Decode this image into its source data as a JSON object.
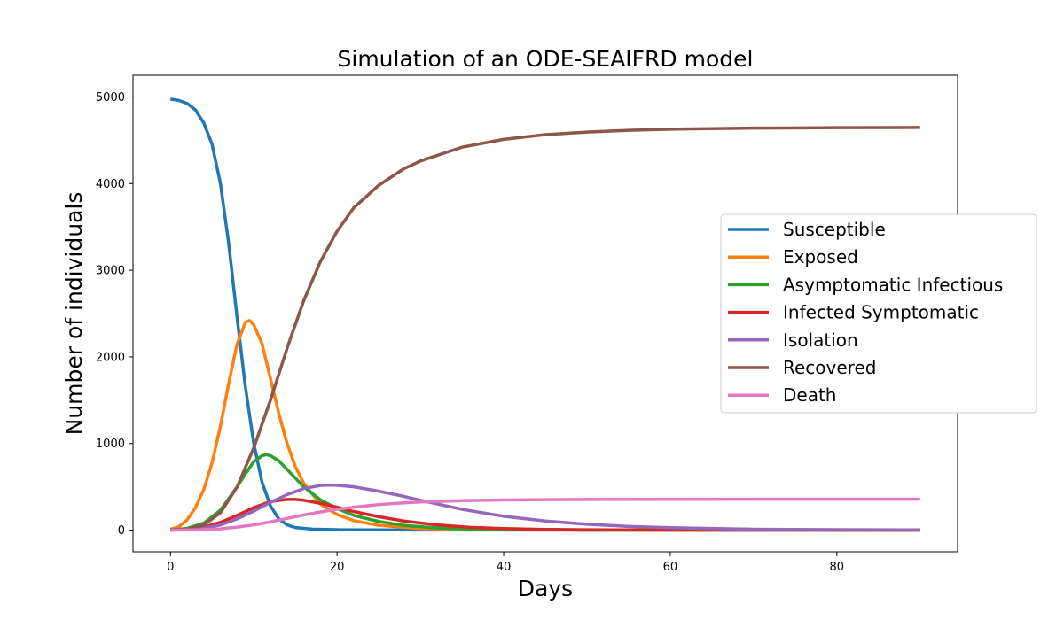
{
  "chart_data": {
    "type": "line",
    "title": "Simulation of an ODE-SEAIFRD model",
    "xlabel": "Days",
    "ylabel": "Number of individuals",
    "xlim": [
      -4.5,
      94.5
    ],
    "ylim": [
      -250,
      5250
    ],
    "xticks": [
      0,
      20,
      40,
      60,
      80
    ],
    "yticks": [
      0,
      1000,
      2000,
      3000,
      4000,
      5000
    ],
    "grid": false,
    "legend_position": "center-right",
    "series": [
      {
        "name": "Susceptible",
        "color": "#1f77b4",
        "points": [
          [
            0,
            4975
          ],
          [
            1,
            4960
          ],
          [
            2,
            4925
          ],
          [
            3,
            4850
          ],
          [
            4,
            4700
          ],
          [
            5,
            4450
          ],
          [
            6,
            4000
          ],
          [
            7,
            3300
          ],
          [
            8,
            2450
          ],
          [
            9,
            1650
          ],
          [
            10,
            1000
          ],
          [
            11,
            550
          ],
          [
            12,
            280
          ],
          [
            13,
            130
          ],
          [
            14,
            60
          ],
          [
            15,
            30
          ],
          [
            17,
            12
          ],
          [
            20,
            5
          ],
          [
            30,
            2
          ],
          [
            50,
            1
          ],
          [
            90,
            1
          ]
        ]
      },
      {
        "name": "Exposed",
        "color": "#ff7f0e",
        "points": [
          [
            0,
            10
          ],
          [
            1,
            40
          ],
          [
            2,
            120
          ],
          [
            3,
            260
          ],
          [
            4,
            470
          ],
          [
            5,
            780
          ],
          [
            6,
            1200
          ],
          [
            7,
            1700
          ],
          [
            8,
            2150
          ],
          [
            9,
            2400
          ],
          [
            9.5,
            2420
          ],
          [
            10,
            2370
          ],
          [
            11,
            2150
          ],
          [
            12,
            1750
          ],
          [
            13,
            1350
          ],
          [
            14,
            1000
          ],
          [
            15,
            730
          ],
          [
            16,
            540
          ],
          [
            18,
            300
          ],
          [
            20,
            180
          ],
          [
            22,
            110
          ],
          [
            25,
            55
          ],
          [
            30,
            20
          ],
          [
            35,
            8
          ],
          [
            40,
            3
          ],
          [
            50,
            1
          ],
          [
            90,
            0
          ]
        ]
      },
      {
        "name": "Asymptomatic Infectious",
        "color": "#2ca02c",
        "points": [
          [
            0,
            5
          ],
          [
            2,
            20
          ],
          [
            4,
            80
          ],
          [
            6,
            230
          ],
          [
            8,
            500
          ],
          [
            9,
            650
          ],
          [
            10,
            790
          ],
          [
            11,
            860
          ],
          [
            11.5,
            870
          ],
          [
            12,
            860
          ],
          [
            13,
            800
          ],
          [
            14,
            700
          ],
          [
            15,
            600
          ],
          [
            16,
            500
          ],
          [
            18,
            350
          ],
          [
            20,
            250
          ],
          [
            22,
            170
          ],
          [
            25,
            100
          ],
          [
            28,
            55
          ],
          [
            32,
            25
          ],
          [
            36,
            12
          ],
          [
            40,
            6
          ],
          [
            50,
            2
          ],
          [
            90,
            0
          ]
        ]
      },
      {
        "name": "Infected Symptomatic",
        "color": "#d62728",
        "points": [
          [
            0,
            3
          ],
          [
            2,
            10
          ],
          [
            4,
            35
          ],
          [
            6,
            90
          ],
          [
            8,
            170
          ],
          [
            10,
            260
          ],
          [
            12,
            330
          ],
          [
            14,
            355
          ],
          [
            15,
            355
          ],
          [
            16,
            345
          ],
          [
            18,
            310
          ],
          [
            20,
            265
          ],
          [
            22,
            215
          ],
          [
            25,
            155
          ],
          [
            28,
            105
          ],
          [
            32,
            60
          ],
          [
            36,
            33
          ],
          [
            40,
            18
          ],
          [
            45,
            8
          ],
          [
            50,
            4
          ],
          [
            60,
            1
          ],
          [
            90,
            0
          ]
        ]
      },
      {
        "name": "Isolation",
        "color": "#9467bd",
        "points": [
          [
            0,
            0
          ],
          [
            2,
            5
          ],
          [
            4,
            20
          ],
          [
            6,
            60
          ],
          [
            8,
            130
          ],
          [
            10,
            220
          ],
          [
            12,
            320
          ],
          [
            14,
            410
          ],
          [
            16,
            480
          ],
          [
            18,
            515
          ],
          [
            19,
            520
          ],
          [
            20,
            518
          ],
          [
            22,
            500
          ],
          [
            25,
            450
          ],
          [
            28,
            390
          ],
          [
            30,
            345
          ],
          [
            35,
            240
          ],
          [
            40,
            160
          ],
          [
            45,
            105
          ],
          [
            50,
            68
          ],
          [
            55,
            43
          ],
          [
            60,
            28
          ],
          [
            70,
            11
          ],
          [
            80,
            5
          ],
          [
            90,
            2
          ]
        ]
      },
      {
        "name": "Recovered",
        "color": "#8c564b",
        "points": [
          [
            0,
            0
          ],
          [
            2,
            10
          ],
          [
            4,
            60
          ],
          [
            6,
            200
          ],
          [
            8,
            500
          ],
          [
            10,
            950
          ],
          [
            12,
            1500
          ],
          [
            14,
            2100
          ],
          [
            16,
            2650
          ],
          [
            18,
            3100
          ],
          [
            20,
            3450
          ],
          [
            22,
            3720
          ],
          [
            25,
            3980
          ],
          [
            28,
            4170
          ],
          [
            30,
            4260
          ],
          [
            35,
            4420
          ],
          [
            40,
            4510
          ],
          [
            45,
            4565
          ],
          [
            50,
            4595
          ],
          [
            55,
            4615
          ],
          [
            60,
            4628
          ],
          [
            70,
            4640
          ],
          [
            80,
            4645
          ],
          [
            90,
            4648
          ]
        ]
      },
      {
        "name": "Death",
        "color": "#e377c2",
        "points": [
          [
            0,
            0
          ],
          [
            4,
            5
          ],
          [
            6,
            15
          ],
          [
            8,
            35
          ],
          [
            10,
            60
          ],
          [
            12,
            95
          ],
          [
            14,
            135
          ],
          [
            16,
            175
          ],
          [
            18,
            210
          ],
          [
            20,
            240
          ],
          [
            22,
            265
          ],
          [
            25,
            295
          ],
          [
            28,
            315
          ],
          [
            30,
            325
          ],
          [
            35,
            340
          ],
          [
            40,
            348
          ],
          [
            45,
            352
          ],
          [
            50,
            354
          ],
          [
            60,
            356
          ],
          [
            70,
            357
          ],
          [
            90,
            357
          ]
        ]
      }
    ]
  }
}
